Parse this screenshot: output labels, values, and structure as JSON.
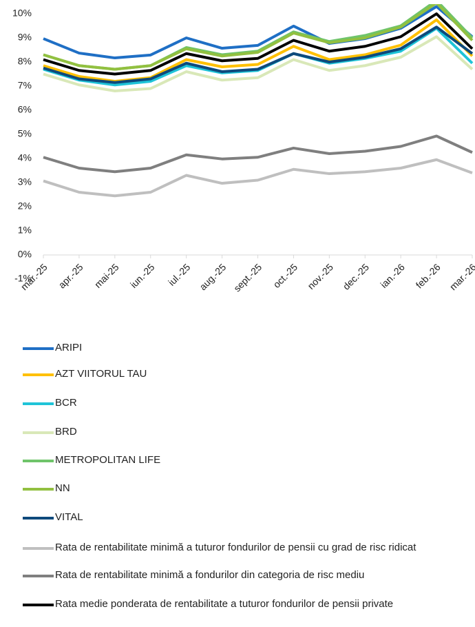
{
  "chart_data": {
    "type": "line",
    "categories": [
      "mar.-25",
      "apr.-25",
      "mai-25",
      "iun.-25",
      "iul.-25",
      "aug.-25",
      "sept.-25",
      "oct.-25",
      "nov.-25",
      "dec.-25",
      "ian.-26",
      "feb.-26",
      "mar.-26"
    ],
    "ylim": [
      -1,
      10
    ],
    "yticks": [
      {
        "value": -1,
        "label": "-1%"
      },
      {
        "value": 0,
        "label": "0%"
      },
      {
        "value": 1,
        "label": "1%"
      },
      {
        "value": 2,
        "label": "2%"
      },
      {
        "value": 3,
        "label": "3%"
      },
      {
        "value": 4,
        "label": "4%"
      },
      {
        "value": 5,
        "label": "5%"
      },
      {
        "value": 6,
        "label": "6%"
      },
      {
        "value": 7,
        "label": "7%"
      },
      {
        "value": 8,
        "label": "8%"
      },
      {
        "value": 9,
        "label": "9%"
      },
      {
        "value": 10,
        "label": "10%"
      }
    ],
    "grid": false,
    "legend": "bottom",
    "series": [
      {
        "name": "ARIPI",
        "color": "#1f6fc5",
        "values": [
          8.97,
          8.37,
          8.17,
          8.29,
          9.0,
          8.57,
          8.69,
          9.49,
          8.77,
          8.97,
          9.4,
          10.3,
          9.05
        ]
      },
      {
        "name": "AZT VIITORUL TAU",
        "color": "#ffc000",
        "values": [
          7.85,
          7.4,
          7.2,
          7.35,
          8.1,
          7.8,
          7.9,
          8.65,
          8.1,
          8.3,
          8.7,
          9.75,
          8.25
        ]
      },
      {
        "name": "BCR",
        "color": "#1fc4d8",
        "values": [
          7.7,
          7.25,
          7.05,
          7.2,
          7.85,
          7.55,
          7.65,
          8.35,
          7.95,
          8.15,
          8.45,
          9.4,
          7.95
        ]
      },
      {
        "name": "BRD",
        "color": "#d9e8b8",
        "values": [
          7.5,
          7.05,
          6.8,
          6.9,
          7.6,
          7.25,
          7.35,
          8.1,
          7.65,
          7.85,
          8.2,
          9.05,
          7.7
        ]
      },
      {
        "name": "METROPOLITAN LIFE",
        "color": "#6fc46a",
        "values": [
          8.3,
          7.85,
          7.7,
          7.85,
          8.6,
          8.3,
          8.45,
          9.25,
          8.85,
          9.1,
          9.5,
          10.55,
          9.0
        ]
      },
      {
        "name": "NN",
        "color": "#92c040",
        "values": [
          8.3,
          7.85,
          7.7,
          7.85,
          8.55,
          8.25,
          8.4,
          9.2,
          8.8,
          9.0,
          9.45,
          10.45,
          8.9
        ]
      },
      {
        "name": "VITAL",
        "color": "#0e4a7c",
        "values": [
          7.75,
          7.3,
          7.15,
          7.3,
          7.95,
          7.6,
          7.7,
          8.35,
          8.0,
          8.2,
          8.55,
          9.45,
          8.35
        ]
      },
      {
        "name": "Rata de rentabilitate minimă a tuturor fondurilor de pensii cu grad de risc ridicat",
        "color": "#bfbfbf",
        "values": [
          3.07,
          2.6,
          2.45,
          2.6,
          3.3,
          2.97,
          3.1,
          3.55,
          3.37,
          3.45,
          3.6,
          3.95,
          3.4
        ]
      },
      {
        "name": "Rata de rentabilitate minimă a fondurilor din categoria de risc mediu",
        "color": "#7f7f7f",
        "values": [
          4.05,
          3.6,
          3.45,
          3.6,
          4.15,
          3.98,
          4.05,
          4.43,
          4.2,
          4.3,
          4.5,
          4.93,
          4.25
        ]
      },
      {
        "name": "Rata medie ponderata de rentabilitate a tuturor fondurilor de pensii private",
        "color": "#000000",
        "values": [
          8.1,
          7.65,
          7.5,
          7.65,
          8.35,
          8.05,
          8.15,
          8.9,
          8.45,
          8.65,
          9.05,
          10.0,
          8.55
        ]
      }
    ]
  }
}
